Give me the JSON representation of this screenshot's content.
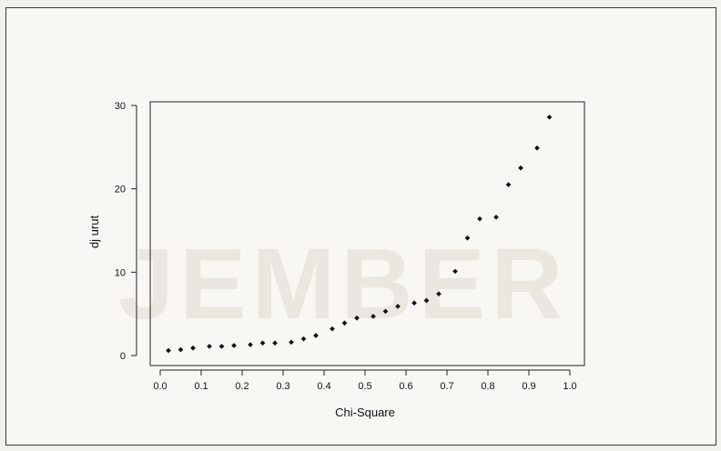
{
  "watermark": "JEMBER",
  "chart_data": {
    "type": "scatter",
    "xlabel": "Chi-Square",
    "ylabel": "dj urut",
    "xlim": [
      0.0,
      1.0
    ],
    "ylim": [
      0,
      30
    ],
    "xticks": [
      "0.0",
      "0.1",
      "0.2",
      "0.3",
      "0.4",
      "0.5",
      "0.6",
      "0.7",
      "0.8",
      "0.9",
      "1.0"
    ],
    "yticks": [
      "0",
      "10",
      "20",
      "30"
    ],
    "grid": false,
    "legend": "none",
    "points": [
      {
        "x": 0.02,
        "y": 0.6
      },
      {
        "x": 0.05,
        "y": 0.7
      },
      {
        "x": 0.08,
        "y": 0.9
      },
      {
        "x": 0.12,
        "y": 1.1
      },
      {
        "x": 0.15,
        "y": 1.1
      },
      {
        "x": 0.18,
        "y": 1.2
      },
      {
        "x": 0.22,
        "y": 1.3
      },
      {
        "x": 0.25,
        "y": 1.5
      },
      {
        "x": 0.28,
        "y": 1.5
      },
      {
        "x": 0.32,
        "y": 1.6
      },
      {
        "x": 0.35,
        "y": 2.0
      },
      {
        "x": 0.38,
        "y": 2.4
      },
      {
        "x": 0.42,
        "y": 3.2
      },
      {
        "x": 0.45,
        "y": 3.9
      },
      {
        "x": 0.48,
        "y": 4.5
      },
      {
        "x": 0.52,
        "y": 4.7
      },
      {
        "x": 0.55,
        "y": 5.3
      },
      {
        "x": 0.58,
        "y": 5.9
      },
      {
        "x": 0.62,
        "y": 6.3
      },
      {
        "x": 0.65,
        "y": 6.6
      },
      {
        "x": 0.68,
        "y": 7.4
      },
      {
        "x": 0.72,
        "y": 10.1
      },
      {
        "x": 0.75,
        "y": 14.1
      },
      {
        "x": 0.78,
        "y": 16.4
      },
      {
        "x": 0.82,
        "y": 16.6
      },
      {
        "x": 0.85,
        "y": 20.5
      },
      {
        "x": 0.88,
        "y": 22.5
      },
      {
        "x": 0.92,
        "y": 24.9
      },
      {
        "x": 0.95,
        "y": 28.6
      }
    ]
  }
}
